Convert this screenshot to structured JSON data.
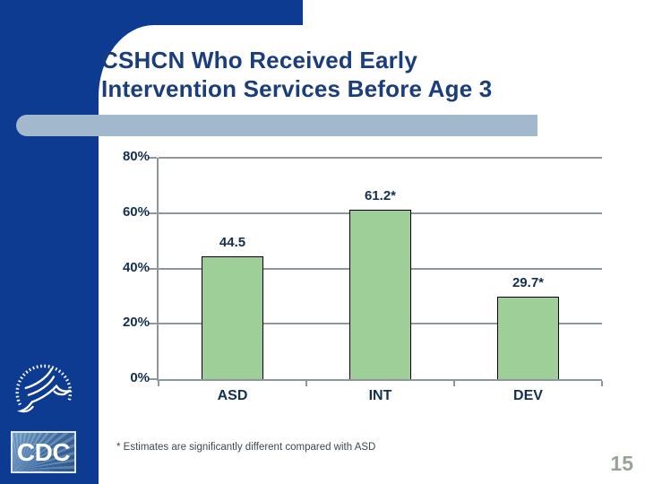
{
  "slide": {
    "title_lines": [
      "CSHCN Who Received Early",
      "Intervention Services Before Age 3"
    ],
    "footnote": "* Estimates are significantly different compared with ASD",
    "page_number": "15"
  },
  "logos": {
    "cdc_label": "CDC"
  },
  "colors": {
    "band_blue": "#0c3b91",
    "title_blue": "#1a3e7c",
    "steel_blue": "#a2b9cd",
    "bar_green": "#9ecf99",
    "bar_border": "#000000",
    "grid_gray": "#8e979d",
    "chart_text": "#13304f",
    "footnote_gray": "#3a4a52",
    "page_number_green": "#94a594"
  },
  "chart_data": {
    "type": "bar",
    "title": "CSHCN Who Received Early Intervention Services Before Age 3",
    "categories": [
      "ASD",
      "INT",
      "DEV"
    ],
    "values": [
      44.5,
      61.2,
      29.7
    ],
    "bar_labels": [
      "44.5",
      "61.2*",
      "29.7*"
    ],
    "y_ticks": [
      "80%",
      "60%",
      "40%",
      "20%",
      "0%"
    ],
    "y_tick_values": [
      80,
      60,
      40,
      20,
      0
    ],
    "ylim": [
      0,
      80
    ],
    "xlabel": "",
    "ylabel": "",
    "grid": "on",
    "legend": "none",
    "footnote": "* Estimates are significantly different compared with ASD"
  }
}
